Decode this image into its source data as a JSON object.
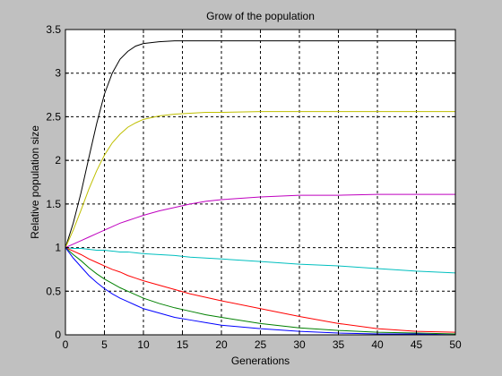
{
  "chart_data": {
    "type": "line",
    "title": "Grow of the population",
    "xlabel": "Generations",
    "ylabel": "Relative population size",
    "xlim": [
      0,
      50
    ],
    "ylim": [
      0,
      3.5
    ],
    "xticks": [
      0,
      5,
      10,
      15,
      20,
      25,
      30,
      35,
      40,
      45,
      50
    ],
    "yticks": [
      0,
      0.5,
      1,
      1.5,
      2,
      2.5,
      3,
      3.5
    ],
    "ytick_labels": [
      "0",
      "0.5",
      "1",
      "1.5",
      "2",
      "2.5",
      "3",
      "3.5"
    ],
    "grid": true,
    "x": [
      0,
      1,
      2,
      3,
      4,
      5,
      6,
      7,
      8,
      9,
      10,
      12,
      14,
      16,
      18,
      20,
      25,
      30,
      35,
      40,
      45,
      50
    ],
    "series": [
      {
        "color": "#000000",
        "values": [
          1.0,
          1.28,
          1.63,
          2.03,
          2.42,
          2.76,
          3.0,
          3.16,
          3.25,
          3.31,
          3.34,
          3.36,
          3.37,
          3.37,
          3.37,
          3.37,
          3.37,
          3.37,
          3.37,
          3.37,
          3.37,
          3.37
        ]
      },
      {
        "color": "#bfbf00",
        "values": [
          1.0,
          1.2,
          1.43,
          1.67,
          1.88,
          2.06,
          2.2,
          2.3,
          2.38,
          2.43,
          2.47,
          2.51,
          2.53,
          2.54,
          2.55,
          2.55,
          2.56,
          2.56,
          2.56,
          2.56,
          2.56,
          2.56
        ]
      },
      {
        "color": "#bf00bf",
        "values": [
          1.0,
          1.04,
          1.08,
          1.12,
          1.16,
          1.2,
          1.24,
          1.28,
          1.31,
          1.34,
          1.37,
          1.42,
          1.46,
          1.5,
          1.53,
          1.55,
          1.58,
          1.6,
          1.6,
          1.61,
          1.61,
          1.61
        ]
      },
      {
        "color": "#00bfbf",
        "values": [
          1.0,
          0.99,
          0.99,
          0.98,
          0.97,
          0.97,
          0.96,
          0.95,
          0.95,
          0.94,
          0.93,
          0.92,
          0.91,
          0.89,
          0.88,
          0.87,
          0.84,
          0.81,
          0.79,
          0.76,
          0.73,
          0.71
        ]
      },
      {
        "color": "#ff0000",
        "values": [
          1.0,
          0.96,
          0.92,
          0.87,
          0.83,
          0.79,
          0.75,
          0.72,
          0.68,
          0.65,
          0.62,
          0.57,
          0.52,
          0.47,
          0.43,
          0.39,
          0.3,
          0.21,
          0.13,
          0.07,
          0.04,
          0.03
        ]
      },
      {
        "color": "#008000",
        "values": [
          1.0,
          0.92,
          0.85,
          0.77,
          0.7,
          0.64,
          0.59,
          0.54,
          0.5,
          0.46,
          0.42,
          0.36,
          0.31,
          0.27,
          0.23,
          0.2,
          0.13,
          0.08,
          0.05,
          0.03,
          0.02,
          0.01
        ]
      },
      {
        "color": "#0000ff",
        "values": [
          1.0,
          0.88,
          0.78,
          0.68,
          0.6,
          0.53,
          0.47,
          0.42,
          0.38,
          0.34,
          0.3,
          0.25,
          0.2,
          0.17,
          0.14,
          0.11,
          0.07,
          0.04,
          0.02,
          0.01,
          0.01,
          0.0
        ]
      }
    ]
  }
}
